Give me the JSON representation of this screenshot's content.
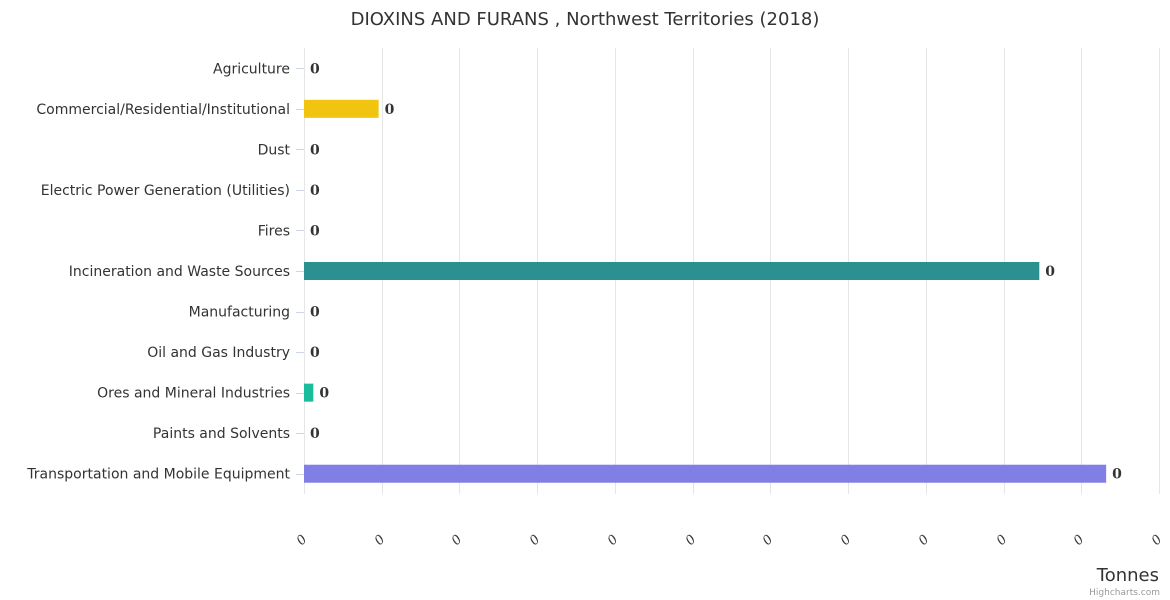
{
  "chart_data": {
    "type": "bar",
    "orientation": "horizontal",
    "title": "DIOXINS AND FURANS , Northwest Territories (2018)",
    "categories": [
      "Agriculture",
      "Commercial/Residential/Institutional",
      "Dust",
      "Electric Power Generation (Utilities)",
      "Fires",
      "Incineration and Waste Sources",
      "Manufacturing",
      "Oil and Gas Industry",
      "Ores and Mineral Industries",
      "Paints and Solvents",
      "Transportation and Mobile Equipment"
    ],
    "values": [
      0,
      9.6e-06,
      0,
      0,
      0,
      9.46e-05,
      0,
      0,
      1.2e-06,
      0,
      0.0001032
    ],
    "data_labels": [
      "0",
      "0",
      "0",
      "0",
      "0",
      "0",
      "0",
      "0",
      "0",
      "0",
      "0"
    ],
    "colors": [
      "#2b908f",
      "#f1c40f",
      "#2b908f",
      "#2b908f",
      "#2b908f",
      "#2b908f",
      "#2b908f",
      "#2b908f",
      "#1abc9c",
      "#2b908f",
      "#7f7fe5"
    ],
    "xlim": [
      0,
      0.00011
    ],
    "x_tick_labels": [
      "0",
      "0",
      "0",
      "0",
      "0",
      "0",
      "0",
      "0",
      "0",
      "0",
      "0",
      "0"
    ],
    "xlabel": "Tonnes",
    "ylabel": "",
    "grid": true,
    "legend": "none",
    "credits": "Highcharts.com"
  }
}
